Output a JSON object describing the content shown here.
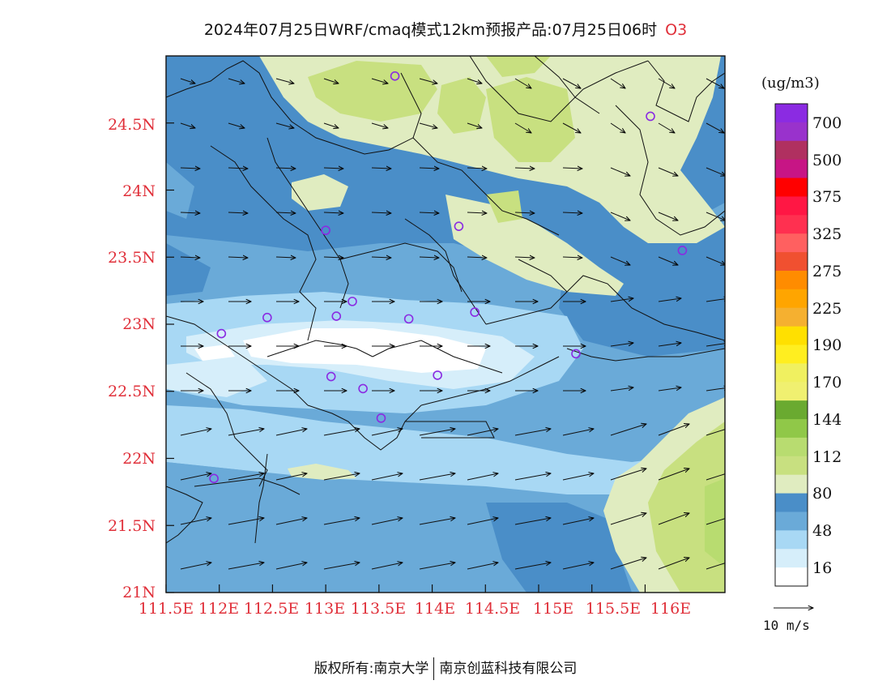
{
  "header": {
    "title": "2024年07月25日WRF/cmaq模式12km预报产品:07月25日06时",
    "pollutant": "O3"
  },
  "map": {
    "lat_labels": [
      "24.5N",
      "24N",
      "23.5N",
      "23N",
      "22.5N",
      "22N",
      "21.5N",
      "21N"
    ],
    "lon_labels": [
      "111.5E",
      "112E",
      "112.5E",
      "113E",
      "113.5E",
      "114E",
      "114.5E",
      "115E",
      "115.5E",
      "116E"
    ],
    "lat_range": [
      21,
      25
    ],
    "lon_range": [
      111.5,
      116.75
    ],
    "station_marker_color": "#8a2be2",
    "stations": [
      {
        "lon": 113.65,
        "lat": 24.85
      },
      {
        "lon": 116.05,
        "lat": 24.55
      },
      {
        "lon": 113.0,
        "lat": 23.7
      },
      {
        "lon": 114.25,
        "lat": 23.73
      },
      {
        "lon": 116.35,
        "lat": 23.55
      },
      {
        "lon": 113.25,
        "lat": 23.17
      },
      {
        "lon": 112.45,
        "lat": 23.05
      },
      {
        "lon": 113.1,
        "lat": 23.06
      },
      {
        "lon": 113.78,
        "lat": 23.04
      },
      {
        "lon": 114.4,
        "lat": 23.09
      },
      {
        "lon": 112.02,
        "lat": 22.93
      },
      {
        "lon": 115.35,
        "lat": 22.78
      },
      {
        "lon": 113.05,
        "lat": 22.61
      },
      {
        "lon": 113.35,
        "lat": 22.52
      },
      {
        "lon": 114.05,
        "lat": 22.62
      },
      {
        "lon": 113.52,
        "lat": 22.3
      },
      {
        "lon": 111.95,
        "lat": 21.85
      }
    ]
  },
  "colorbar": {
    "unit": "(ug/m3)",
    "tick_labels": [
      "700",
      "500",
      "375",
      "325",
      "275",
      "225",
      "190",
      "170",
      "144",
      "112",
      "80",
      "48",
      "16"
    ],
    "colors_top_to_bottom": [
      "#8b2be2",
      "#9932cc",
      "#b03060",
      "#c71585",
      "#ff0000",
      "#ff1744",
      "#ff3050",
      "#ff6060",
      "#f05030",
      "#ff8c00",
      "#ffa500",
      "#f5b030",
      "#ffe000",
      "#ffee20",
      "#f0f060",
      "#f0f070",
      "#6aaa30",
      "#90c848",
      "#b8dc70",
      "#c8e080",
      "#e0ecc0",
      "#4a8ec8",
      "#6aaad8",
      "#a8d8f4",
      "#d6eefa",
      "#ffffff"
    ]
  },
  "wind_legend": {
    "label": "10 m/s"
  },
  "footer": {
    "left": "版权所有:南京大学",
    "right": "南京创蓝科技有限公司"
  }
}
